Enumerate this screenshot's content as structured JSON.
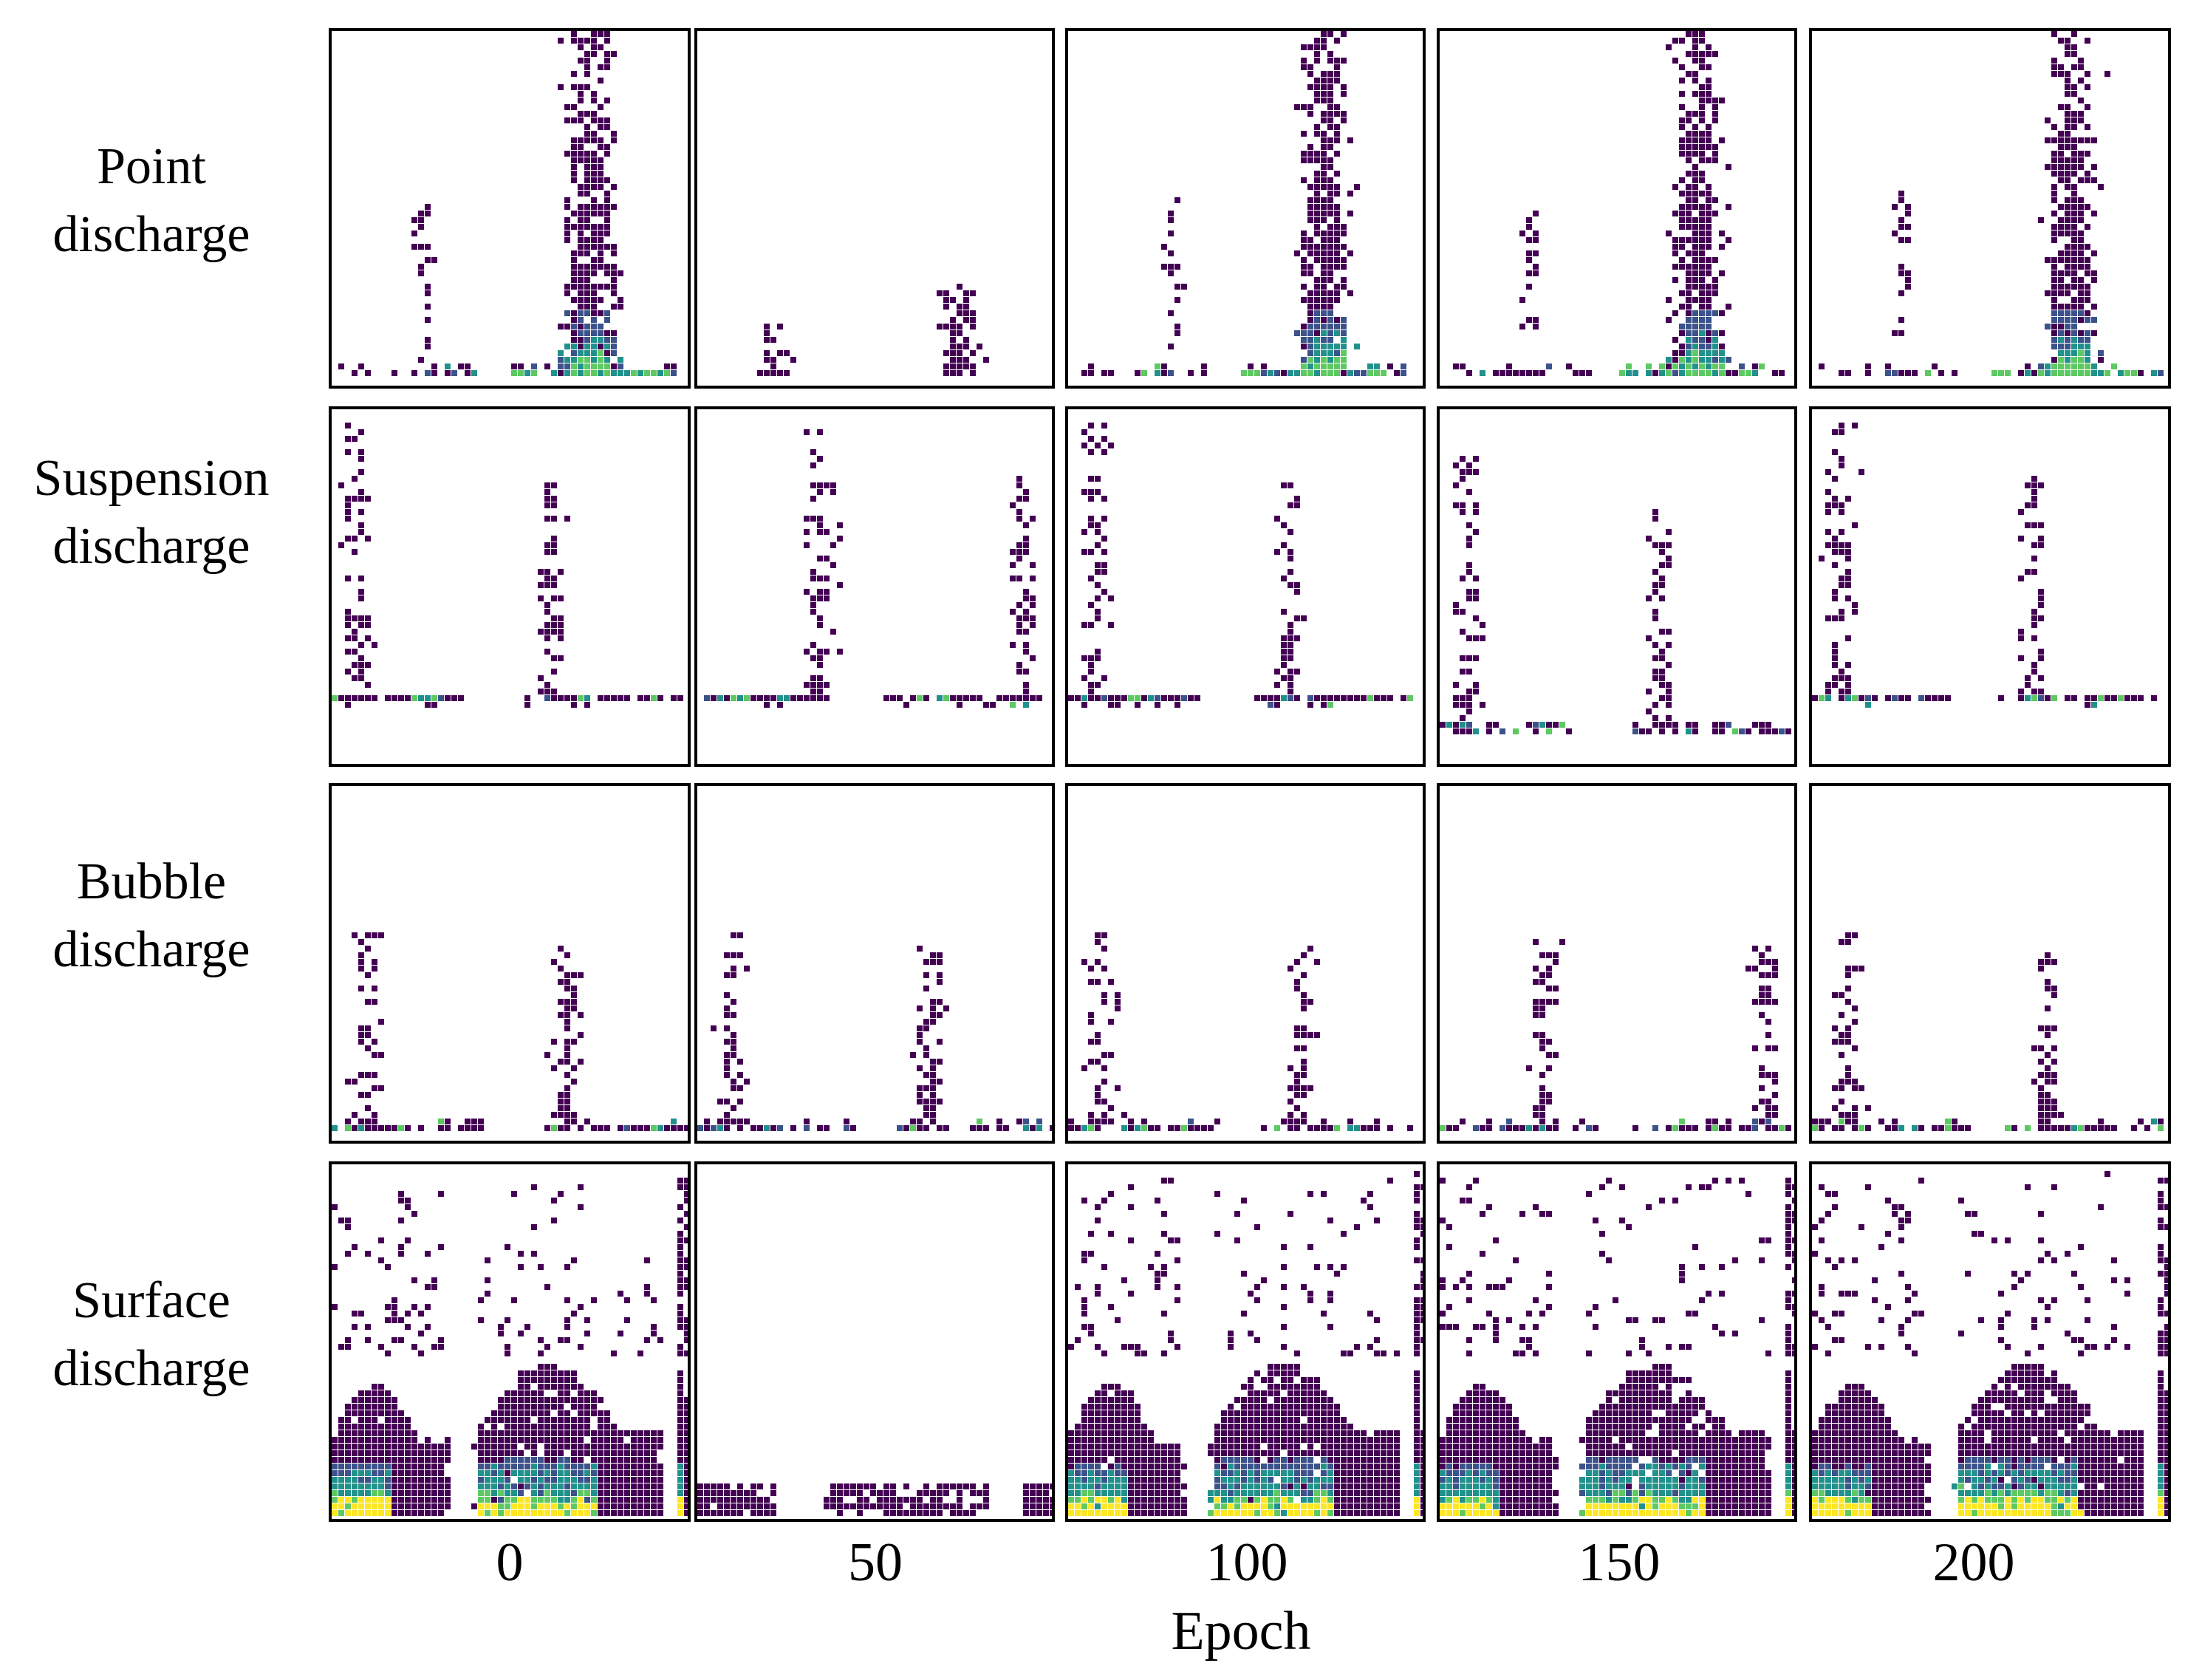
{
  "chart_data": {
    "type": "heatmap",
    "description_rows": "PRPD pattern heatmaps per discharge type",
    "rows": [
      {
        "key": "point",
        "label_lines": [
          "Point",
          "discharge"
        ]
      },
      {
        "key": "suspension",
        "label_lines": [
          "Suspension",
          "discharge"
        ]
      },
      {
        "key": "bubble",
        "label_lines": [
          "Bubble",
          "discharge"
        ]
      },
      {
        "key": "surface",
        "label_lines": [
          "Surface",
          "discharge"
        ]
      }
    ],
    "columns": [
      "0",
      "50",
      "100",
      "150",
      "200"
    ],
    "xlabel": "Epoch",
    "colormap": [
      "#440154",
      "#3b528b",
      "#21918c",
      "#5ec962",
      "#fde725"
    ]
  }
}
